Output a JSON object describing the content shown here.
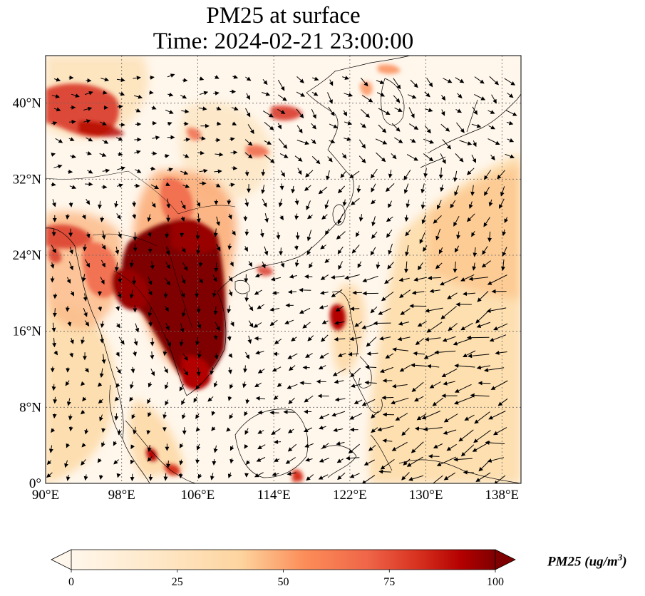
{
  "title": {
    "line1": "PM25 at surface",
    "line2": "Time: 2024-02-21 23:00:00"
  },
  "map": {
    "extent": {
      "lon": [
        90,
        140
      ],
      "lat": [
        0,
        45
      ]
    },
    "lon_ticks": [
      "90°E",
      "98°E",
      "106°E",
      "114°E",
      "122°E",
      "130°E",
      "138°E"
    ],
    "lat_ticks": [
      "0°",
      "8°N",
      "16°N",
      "24°N",
      "32°N",
      "40°N"
    ],
    "gridlines": true,
    "colormap": "OrRd",
    "wind_vectors": true,
    "high_pm25_regions": [
      {
        "name": "Indochina / South China",
        "level": 100
      },
      {
        "name": "Taklamakan / NW China",
        "level": 85
      },
      {
        "name": "Luzon",
        "level": 90
      },
      {
        "name": "Eastern Myanmar",
        "level": 80
      }
    ]
  },
  "colorbar": {
    "ticks": [
      "0",
      "25",
      "50",
      "75",
      "100"
    ],
    "min": 0,
    "max": 100,
    "extend": "both",
    "label_prefix": "PM25 (ug/m",
    "label_exp": "3",
    "label_suffix": ")"
  },
  "colors": {
    "low": "#fff7ec",
    "mid": "#fdbb84",
    "high": "#7f0000"
  }
}
